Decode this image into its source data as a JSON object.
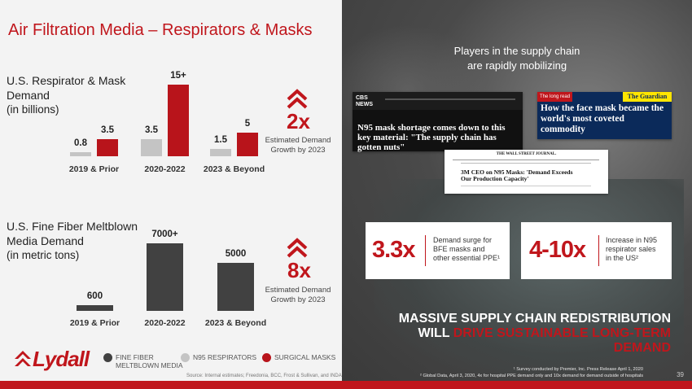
{
  "title": "Air Filtration Media – Respirators & Masks",
  "section1": {
    "title_line1": "U.S. Respirator & Mask",
    "title_line2": "Demand",
    "unit": "(in billions)",
    "multiplier": "2x",
    "est_line1": "Estimated Demand",
    "est_line2": "Growth by 2023"
  },
  "section2": {
    "title_line1": "U.S. Fine Fiber Meltblown",
    "title_line2": "Media Demand",
    "unit": "(in metric tons)",
    "multiplier": "8x",
    "est_line1": "Estimated Demand",
    "est_line2": "Growth by 2023"
  },
  "chart_data": [
    {
      "type": "bar",
      "categories": [
        "2019 & Prior",
        "2020-2022",
        "2023 & Beyond"
      ],
      "series": [
        {
          "name": "N95 RESPIRATORS",
          "values": [
            0.8,
            3.5,
            1.5
          ],
          "labels": [
            "0.8",
            "3.5",
            "1.5"
          ],
          "color": "#c4c4c4"
        },
        {
          "name": "SURGICAL MASKS",
          "values": [
            3.5,
            15,
            5
          ],
          "labels": [
            "3.5",
            "15+",
            "5"
          ],
          "color": "#b8141b"
        }
      ],
      "ylim": [
        0,
        15
      ]
    },
    {
      "type": "bar",
      "categories": [
        "2019 & Prior",
        "2020-2022",
        "2023 & Beyond"
      ],
      "series": [
        {
          "name": "FINE FIBER MELTBLOWN MEDIA",
          "values": [
            600,
            7000,
            5000
          ],
          "labels": [
            "600",
            "7000+",
            "5000"
          ],
          "color": "#414141"
        }
      ],
      "ylim": [
        0,
        7000
      ]
    }
  ],
  "legend": {
    "fine_fiber_line1": "FINE FIBER",
    "fine_fiber_line2": "MELTBLOWN MEDIA",
    "n95": "N95 RESPIRATORS",
    "surgical": "SURGICAL MASKS"
  },
  "logo": "Lydall",
  "source": "Source: Internal estimates; Freedonia, BCC, Frost & Sullivan, and INDA",
  "right": {
    "title_line1": "Players in the supply chain",
    "title_line2": "are rapidly mobilizing",
    "news": {
      "cbs_logo": "CBS NEWS",
      "cbs_headline": "N95 mask shortage comes down to this key material: \"The supply chain has gotten nuts\"",
      "guardian_tag": "The long read",
      "guardian_logo": "The Guardian",
      "guardian_headline": "How the face mask became the world's most coveted commodity",
      "wsj_logo": "THE WALL STREET JOURNAL.",
      "wsj_headline": "3M CEO on N95 Masks: 'Demand Exceeds Our Production Capacity'"
    },
    "stat1": {
      "value": "3.3x",
      "desc_line1": "Demand surge for",
      "desc_line2": "BFE masks and",
      "desc_line3": "other essential PPE¹"
    },
    "stat2": {
      "value": "4-10x",
      "desc_line1": "Increase in N95",
      "desc_line2": "respirator sales",
      "desc_line3": "in the US²"
    },
    "massive_line1": "MASSIVE SUPPLY CHAIN REDISTRIBUTION",
    "massive_white": "WILL ",
    "massive_red": "DRIVE SUSTAINABLE LONG-TERM",
    "massive_red2": "DEMAND",
    "footnote1": "¹ Survey conducted by Premier, Inc. Press Release April 1, 2020",
    "footnote2": "² Global Data, April 3, 2020, 4x for hospital PPE demand only and 10x demand for demand outside of hospitals",
    "page": "39"
  },
  "colors": {
    "red": "#c0161c",
    "grey": "#c4c4c4",
    "dark": "#414141"
  }
}
